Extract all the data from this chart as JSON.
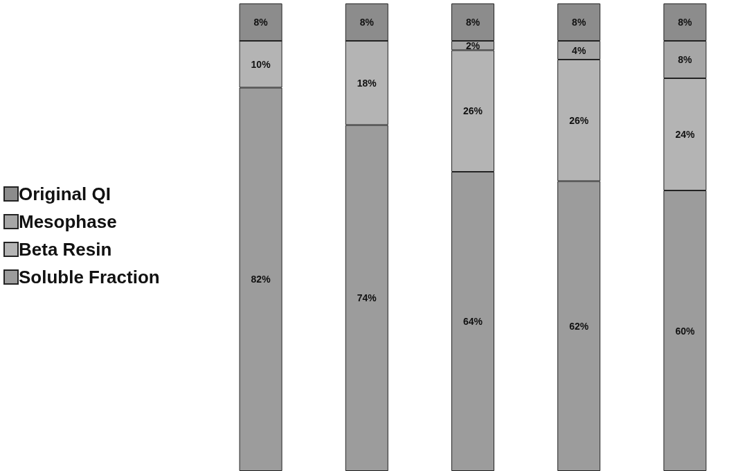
{
  "chart_data": {
    "type": "bar",
    "stacked": true,
    "categories": [
      null,
      null,
      null,
      null,
      null
    ],
    "legend": "left",
    "series": [
      {
        "name": "Soluble Fraction",
        "color": "#9c9c9c",
        "values": [
          82,
          74,
          64,
          62,
          60
        ],
        "value_labels": [
          "82%",
          "74%",
          "64%",
          "62%",
          "60%"
        ]
      },
      {
        "name": "Beta Resin",
        "color": "#b4b4b4",
        "values": [
          10,
          18,
          26,
          26,
          24
        ],
        "value_labels": [
          "10%",
          "18%",
          "26%",
          "26%",
          "24%"
        ]
      },
      {
        "name": "Mesophase",
        "color": "#a6a6a6",
        "values": [
          0,
          0,
          2,
          4,
          8
        ],
        "value_labels": [
          null,
          null,
          "2%",
          "4%",
          "8%"
        ]
      },
      {
        "name": "Original QI",
        "color": "#8c8c8c",
        "values": [
          8,
          8,
          8,
          8,
          8
        ],
        "value_labels": [
          "8%",
          "8%",
          "8%",
          "8%",
          "8%"
        ]
      }
    ]
  }
}
